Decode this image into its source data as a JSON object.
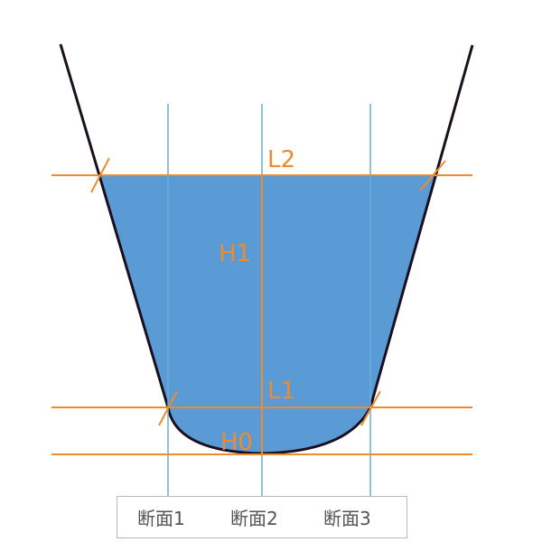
{
  "colors": {
    "background": "#ffffff",
    "water_fill": "#5b9bd5",
    "channel_outline": "#1a0f1f",
    "reference_line": "#ed8b2e",
    "section_line": "#6aaed6",
    "legend_border": "#b8b8b8",
    "legend_text": "#555555"
  },
  "labels": {
    "top_width": "L2",
    "depth_upper": "H1",
    "bottom_width": "L1",
    "depth_lower": "H0"
  },
  "legend": {
    "sections": [
      "断面1",
      "断面2",
      "断面3"
    ]
  }
}
